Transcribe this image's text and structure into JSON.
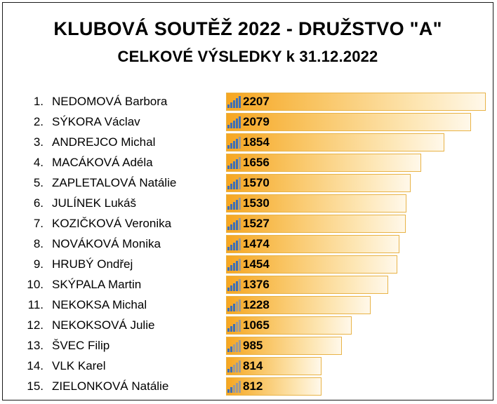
{
  "header": {
    "title": "KLUBOVÁ SOUTĚŽ 2022 - DRUŽSTVO \"A\"",
    "subtitle": "CELKOVÉ VÝSLEDKY k 31.12.2022"
  },
  "colors": {
    "bar_start": "#f6a621",
    "bar_end": "#fff8ea",
    "bar_border": "#e8b347",
    "icon_filled": "#3f6fb5",
    "icon_empty": "#9a9a9a"
  },
  "chart_data": {
    "type": "bar",
    "orientation": "horizontal",
    "title": "KLUBOVÁ SOUTĚŽ 2022 - DRUŽSTVO \"A\"",
    "subtitle": "CELKOVÉ VÝSLEDKY k 31.12.2022",
    "xlim": [
      0,
      2300
    ],
    "grid": false,
    "data_labels": true,
    "rows": [
      {
        "rank": "1.",
        "name": "NEDOMOVÁ Barbora",
        "value": 2207,
        "icon_level": 5
      },
      {
        "rank": "2.",
        "name": "SÝKORA Václav",
        "value": 2079,
        "icon_level": 5
      },
      {
        "rank": "3.",
        "name": "ANDREJCO Michal",
        "value": 1854,
        "icon_level": 4
      },
      {
        "rank": "4.",
        "name": "MACÁKOVÁ Adéla",
        "value": 1656,
        "icon_level": 4
      },
      {
        "rank": "5.",
        "name": "ZAPLETALOVÁ Natálie",
        "value": 1570,
        "icon_level": 4
      },
      {
        "rank": "6.",
        "name": "JULÍNEK Lukáš",
        "value": 1530,
        "icon_level": 4
      },
      {
        "rank": "7.",
        "name": "KOZIČKOVÁ Veronika",
        "value": 1527,
        "icon_level": 4
      },
      {
        "rank": "8.",
        "name": "NOVÁKOVÁ Monika",
        "value": 1474,
        "icon_level": 4
      },
      {
        "rank": "9.",
        "name": "HRUBÝ Ondřej",
        "value": 1454,
        "icon_level": 4
      },
      {
        "rank": "10.",
        "name": "SKÝPALA Martin",
        "value": 1376,
        "icon_level": 4
      },
      {
        "rank": "11.",
        "name": "NEKOKSA Michal",
        "value": 1228,
        "icon_level": 3
      },
      {
        "rank": "12.",
        "name": "NEKOKSOVÁ Julie",
        "value": 1065,
        "icon_level": 3
      },
      {
        "rank": "13.",
        "name": "ŠVEC Filip",
        "value": 985,
        "icon_level": 2
      },
      {
        "rank": "14.",
        "name": "VLK Karel",
        "value": 814,
        "icon_level": 2
      },
      {
        "rank": "15.",
        "name": "ZIELONKOVÁ Natálie",
        "value": 812,
        "icon_level": 2
      }
    ]
  }
}
